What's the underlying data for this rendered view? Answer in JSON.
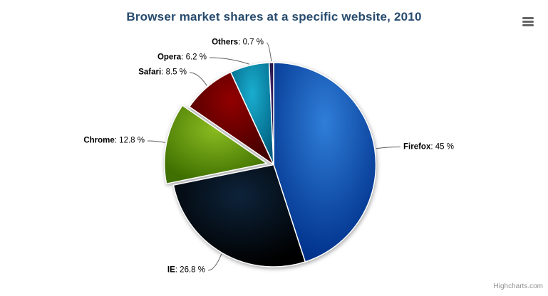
{
  "chart_data": {
    "type": "pie",
    "title": "Browser market shares at a specific website, 2010",
    "title_color": "#274b6d",
    "unit": "%",
    "legend": "none",
    "start_angle_deg": 0,
    "direction": "clockwise",
    "border_color": "#ffffff",
    "connector_color": "#606060",
    "label_text_color": "#000000",
    "slices": [
      {
        "name": "Firefox",
        "value": 45,
        "label_rest": ": 45 %",
        "color": "#2f7ed8",
        "sliced": false
      },
      {
        "name": "IE",
        "value": 26.8,
        "label_rest": ": 26.8 %",
        "color": "#0d233a",
        "sliced": false
      },
      {
        "name": "Chrome",
        "value": 12.8,
        "label_rest": ": 12.8 %",
        "color": "#8bbc21",
        "sliced": true
      },
      {
        "name": "Safari",
        "value": 8.5,
        "label_rest": ": 8.5 %",
        "color": "#910000",
        "sliced": false
      },
      {
        "name": "Opera",
        "value": 6.2,
        "label_rest": ": 6.2 %",
        "color": "#1aadce",
        "sliced": false
      },
      {
        "name": "Others",
        "value": 0.7,
        "label_rest": ": 0.7 %",
        "color": "#492970",
        "sliced": false
      }
    ]
  },
  "export_menu": {
    "icon": "hamburger-icon",
    "bar_color": "#666666"
  },
  "credits": {
    "text": "Highcharts.com",
    "color": "#909090"
  }
}
